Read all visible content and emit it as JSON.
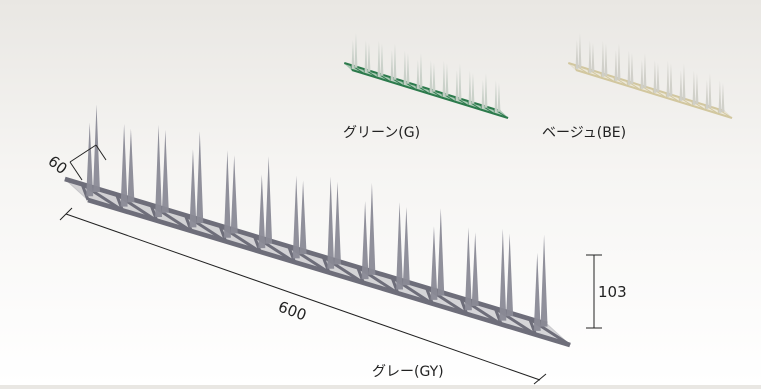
{
  "variants": [
    {
      "label": "グリーン(G)",
      "color": "#2f8a55",
      "spike": "#cfd6cf"
    },
    {
      "label": "ベージュ(BE)",
      "color": "#e6ddbb",
      "spike": "#d8d8d2"
    },
    {
      "label": "グレー(GY)",
      "color": "#7d7d88",
      "spike": "#8c8c98"
    }
  ],
  "dimensions": {
    "width": "60",
    "length": "600",
    "height": "103"
  }
}
